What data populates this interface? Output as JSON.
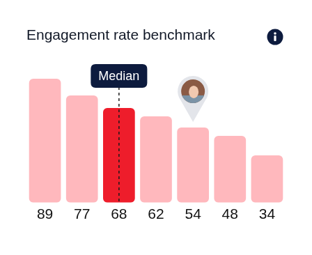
{
  "chart_data": {
    "type": "bar",
    "title": "Engagement rate benchmark",
    "categories": [
      "89",
      "77",
      "68",
      "62",
      "54",
      "48",
      "34"
    ],
    "values": [
      89,
      77,
      68,
      62,
      54,
      48,
      34
    ],
    "colors": [
      "#ffb8bd",
      "#ffb8bd",
      "#ee1d2b",
      "#ffb8bd",
      "#ffb8bd",
      "#ffb8bd",
      "#ffb8bd"
    ],
    "ylim": [
      0,
      89
    ],
    "grid": false,
    "tick_labels": "x",
    "annotations": [
      {
        "text": "Median",
        "category": "68"
      },
      {
        "marker": "pin",
        "category": "54"
      }
    ]
  }
}
